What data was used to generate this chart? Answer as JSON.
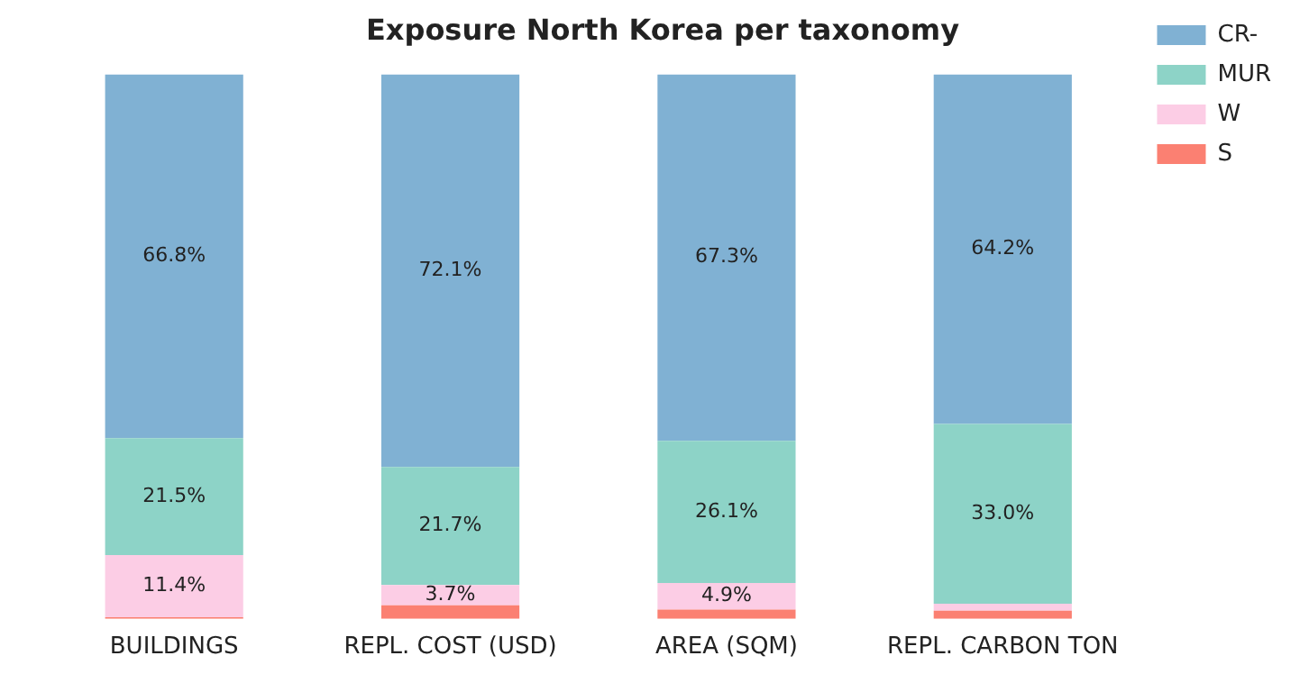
{
  "chart_data": {
    "type": "bar",
    "title": "Exposure North Korea per taxonomy",
    "stacked": true,
    "categories": [
      "BUILDINGS",
      "REPL. COST (USD)",
      "AREA (SQM)",
      "REPL. CARBON TON"
    ],
    "series": [
      {
        "name": "S",
        "color": "#fb8072",
        "values": [
          0.3,
          2.5,
          1.7,
          1.5
        ],
        "value_labels": [
          null,
          null,
          null,
          null
        ]
      },
      {
        "name": "W",
        "color": "#fccde5",
        "values": [
          11.4,
          3.7,
          4.9,
          1.3
        ],
        "value_labels": [
          "11.4%",
          "3.7%",
          "4.9%",
          null
        ]
      },
      {
        "name": "MUR",
        "color": "#8dd3c7",
        "values": [
          21.5,
          21.7,
          26.1,
          33.0
        ],
        "value_labels": [
          "21.5%",
          "21.7%",
          "26.1%",
          "33.0%"
        ]
      },
      {
        "name": "CR-",
        "color": "#80b1d3",
        "values": [
          66.8,
          72.1,
          67.3,
          64.2
        ],
        "value_labels": [
          "66.8%",
          "72.1%",
          "67.3%",
          "64.2%"
        ]
      }
    ],
    "ylim": [
      0,
      100
    ],
    "tick_labels": "x",
    "grid": false,
    "legend": "top right"
  }
}
